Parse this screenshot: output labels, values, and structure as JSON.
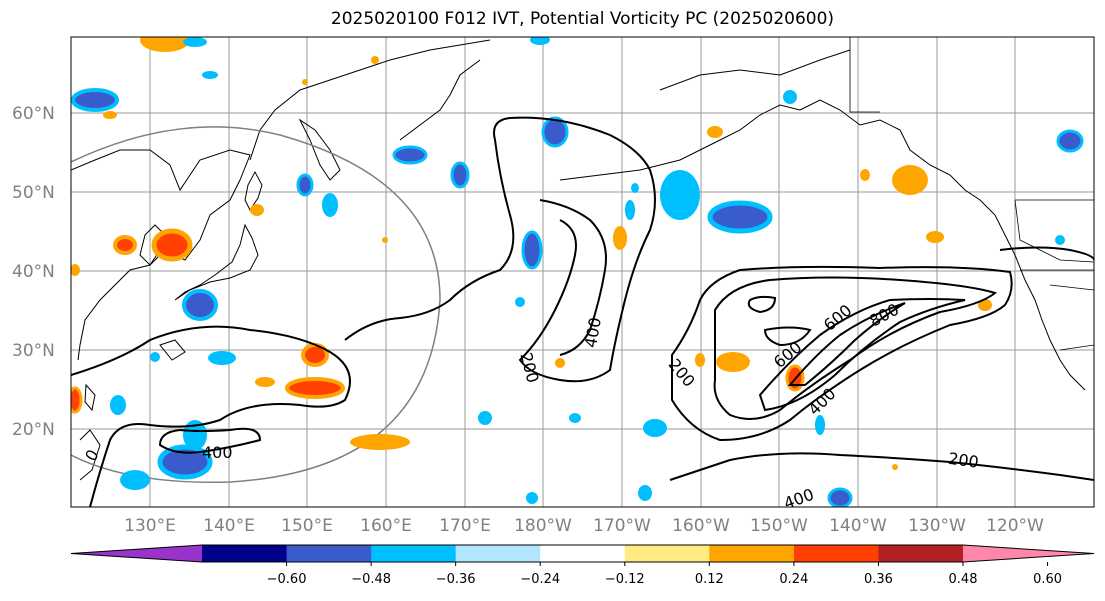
{
  "title": "2025020100 F012 IVT, Potential Vorticity PC (2025020600)",
  "lat_labels": [
    "60°N",
    "50°N",
    "40°N",
    "30°N",
    "20°N"
  ],
  "lon_labels": [
    "130°E",
    "140°E",
    "150°E",
    "160°E",
    "170°E",
    "180°W",
    "170°W",
    "160°W",
    "150°W",
    "140°W",
    "130°W",
    "120°W"
  ],
  "contour_labels": [
    "400",
    "200",
    "200",
    "600",
    "600",
    "800",
    "400",
    "400",
    "200",
    "400",
    "0"
  ],
  "colorbar": {
    "colors": [
      "#9933cc",
      "#00008b",
      "#3a5bcc",
      "#00bfff",
      "#b3e5ff",
      "#ffffff",
      "#ffeb80",
      "#ffa500",
      "#ff4000",
      "#b22222",
      "#ff88aa"
    ],
    "tick_labels": [
      "−0.60",
      "−0.48",
      "−0.36",
      "−0.24",
      "−0.12",
      "0.12",
      "0.24",
      "0.36",
      "0.48",
      "0.60"
    ]
  }
}
